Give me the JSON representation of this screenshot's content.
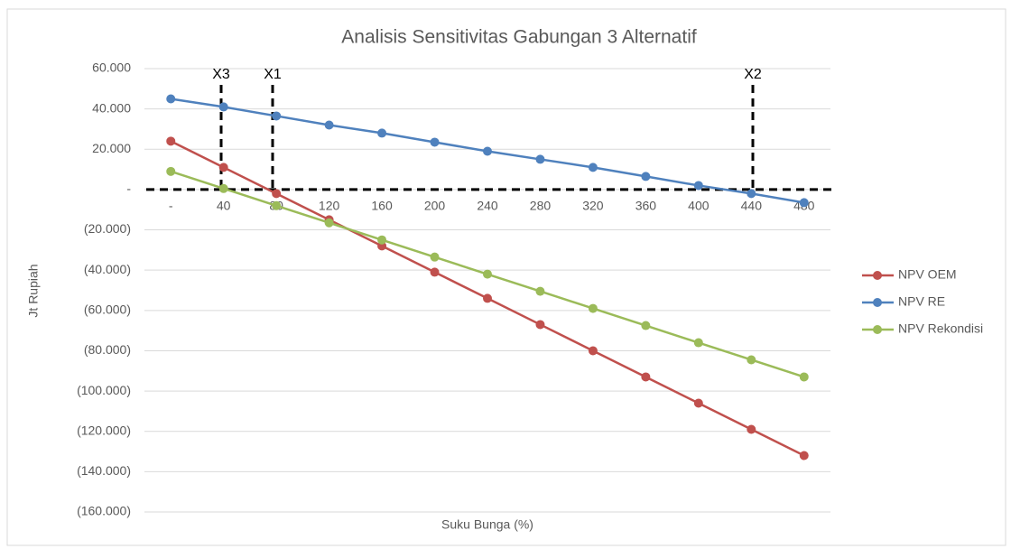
{
  "chart_data": {
    "type": "line",
    "title": "Analisis Sensitivitas Gabungan 3 Alternatif",
    "x_label": "Suku Bunga (%)",
    "y_label": "Jt Rupiah",
    "categories": [
      "-",
      "40",
      "80",
      "120",
      "160",
      "200",
      "240",
      "280",
      "320",
      "360",
      "400",
      "440",
      "480"
    ],
    "series": [
      {
        "name": "NPV OEM",
        "color": "#c0504d",
        "values": [
          24000,
          11000,
          -2000,
          -15000,
          -28000,
          -41000,
          -54000,
          -67000,
          -80000,
          -93000,
          -106000,
          -119000,
          -132000
        ]
      },
      {
        "name": "NPV RE",
        "color": "#4f81bd",
        "values": [
          45000,
          41000,
          36500,
          32000,
          28000,
          23500,
          19000,
          15000,
          11000,
          6500,
          2000,
          -2000,
          -6500
        ]
      },
      {
        "name": "NPV Rekondisi",
        "color": "#9bbb59",
        "values": [
          9000,
          500,
          -8000,
          -16500,
          -25000,
          -33500,
          -42000,
          -50500,
          -59000,
          -67500,
          -76000,
          -84500,
          -93000
        ]
      }
    ],
    "ylim": [
      -160000,
      60000
    ],
    "yticks": [
      {
        "value": -160000,
        "label": "(160.000)"
      },
      {
        "value": -140000,
        "label": "(140.000)"
      },
      {
        "value": -120000,
        "label": "(120.000)"
      },
      {
        "value": -100000,
        "label": "(100.000)"
      },
      {
        "value": -80000,
        "label": "(80.000)"
      },
      {
        "value": -60000,
        "label": "(60.000)"
      },
      {
        "value": -40000,
        "label": "(40.000)"
      },
      {
        "value": -20000,
        "label": "(20.000)"
      },
      {
        "value": 0,
        "label": "-"
      },
      {
        "value": 20000,
        "label": "20.000"
      },
      {
        "value": 40000,
        "label": "40.000"
      },
      {
        "value": 60000,
        "label": "60.000"
      }
    ],
    "grid": true,
    "legend": "right",
    "annotations": [
      "X3",
      "X1",
      "X2"
    ]
  }
}
